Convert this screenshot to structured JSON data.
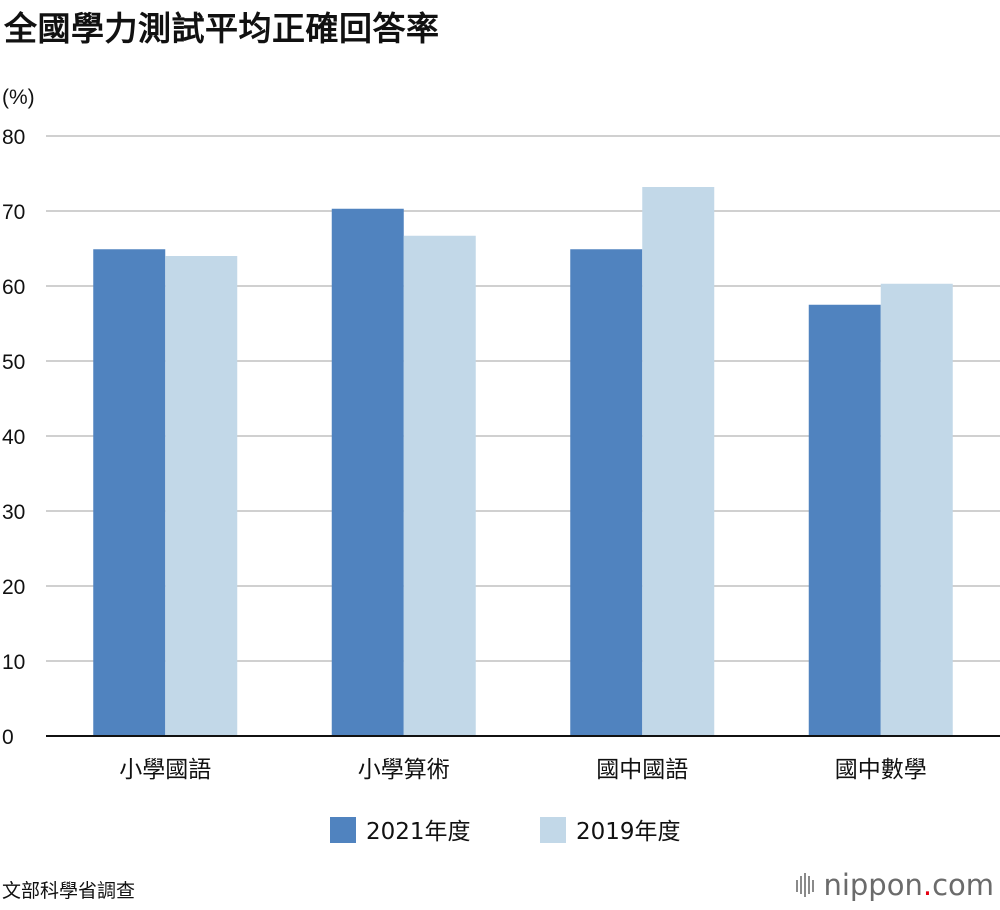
{
  "title": "全國學力測試平均正確回答率",
  "source": "文部科學省調查",
  "brand": {
    "name": "nippon",
    "dot": ".",
    "suffix": "com"
  },
  "colors": {
    "series_2021": "#5083bf",
    "series_2019": "#c2d8e8",
    "grid": "#d0d0d0",
    "axis": "#111111"
  },
  "chart_data": {
    "type": "bar",
    "title": "全國學力測試平均正確回答率",
    "ylabel": "(%)",
    "xlabel": "",
    "ylim": [
      0,
      80
    ],
    "yticks": [
      0,
      10,
      20,
      30,
      40,
      50,
      60,
      70,
      80
    ],
    "grid": true,
    "legend_position": "bottom",
    "categories": [
      "小學國語",
      "小學算術",
      "國中國語",
      "國中數學"
    ],
    "series": [
      {
        "name": "2021年度",
        "color": "#5083bf",
        "values": [
          64.9,
          70.3,
          64.9,
          57.5
        ]
      },
      {
        "name": "2019年度",
        "color": "#c2d8e8",
        "values": [
          64.0,
          66.7,
          73.2,
          60.3
        ]
      }
    ]
  }
}
